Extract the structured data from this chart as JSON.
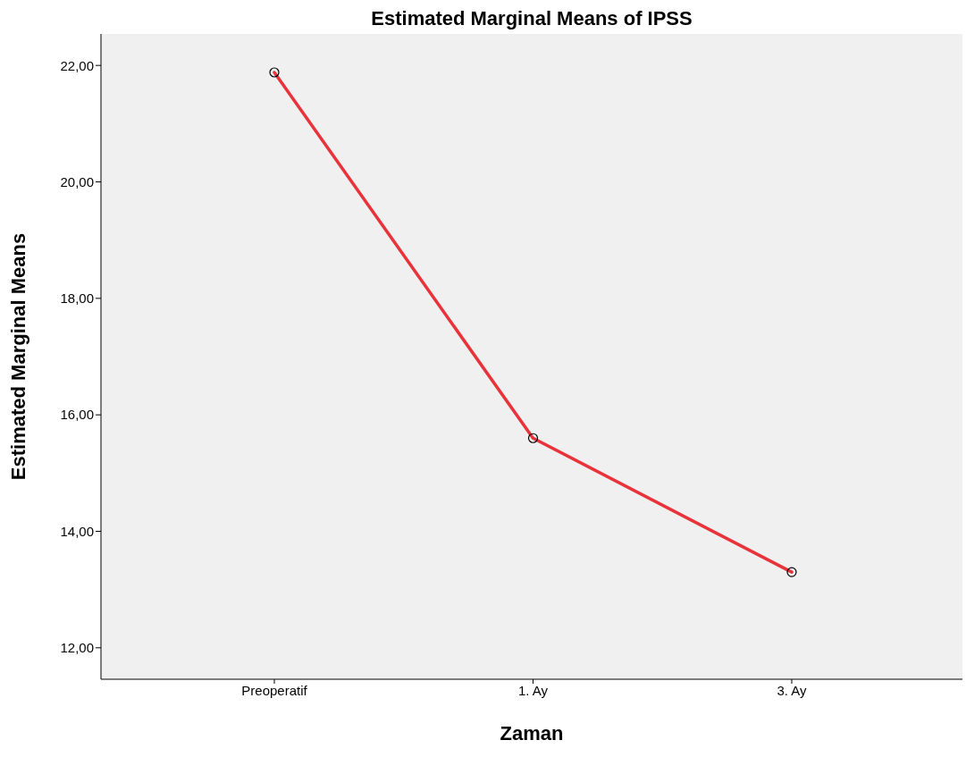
{
  "chart_data": {
    "type": "line",
    "title": "Estimated Marginal Means of IPSS",
    "xlabel": "Zaman",
    "ylabel": "Estimated Marginal Means",
    "categories": [
      "Preoperatif",
      "1. Ay",
      "3. Ay"
    ],
    "series": [
      {
        "color": "#e8333b",
        "values": [
          21.88,
          15.6,
          13.3
        ]
      }
    ],
    "ylim": [
      11.46,
      22.54
    ],
    "yticks": [
      {
        "value": 12,
        "label": "12,00"
      },
      {
        "value": 14,
        "label": "14,00"
      },
      {
        "value": 16,
        "label": "16,00"
      },
      {
        "value": 18,
        "label": "18,00"
      },
      {
        "value": 20,
        "label": "20,00"
      },
      {
        "value": 22,
        "label": "22,00"
      }
    ],
    "grid": false,
    "legend": false,
    "marker": "circle",
    "line_style": "solid"
  }
}
